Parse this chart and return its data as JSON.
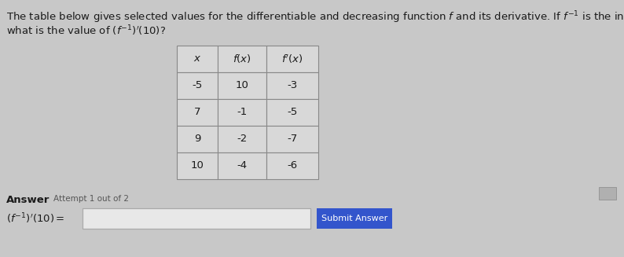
{
  "bg_color": "#c8c8c8",
  "text_color": "#1a1a1a",
  "table_bg": "#d8d8d8",
  "table_border": "#888888",
  "answer_label": "Answer",
  "attempt_label": "Attempt 1 out of 2",
  "submit_btn_text": "Submit Answer",
  "submit_btn_color": "#3355cc",
  "input_box_bg": "#e8e8e8",
  "input_box_border": "#aaaaaa",
  "small_box_color": "#aaaaaa",
  "table_data": [
    [
      "-5",
      "10",
      "-3"
    ],
    [
      "7",
      "-1",
      "-5"
    ],
    [
      "9",
      "-2",
      "-7"
    ],
    [
      "10",
      "-4",
      "-6"
    ]
  ],
  "fig_w": 7.94,
  "fig_h": 3.27,
  "dpi": 100
}
